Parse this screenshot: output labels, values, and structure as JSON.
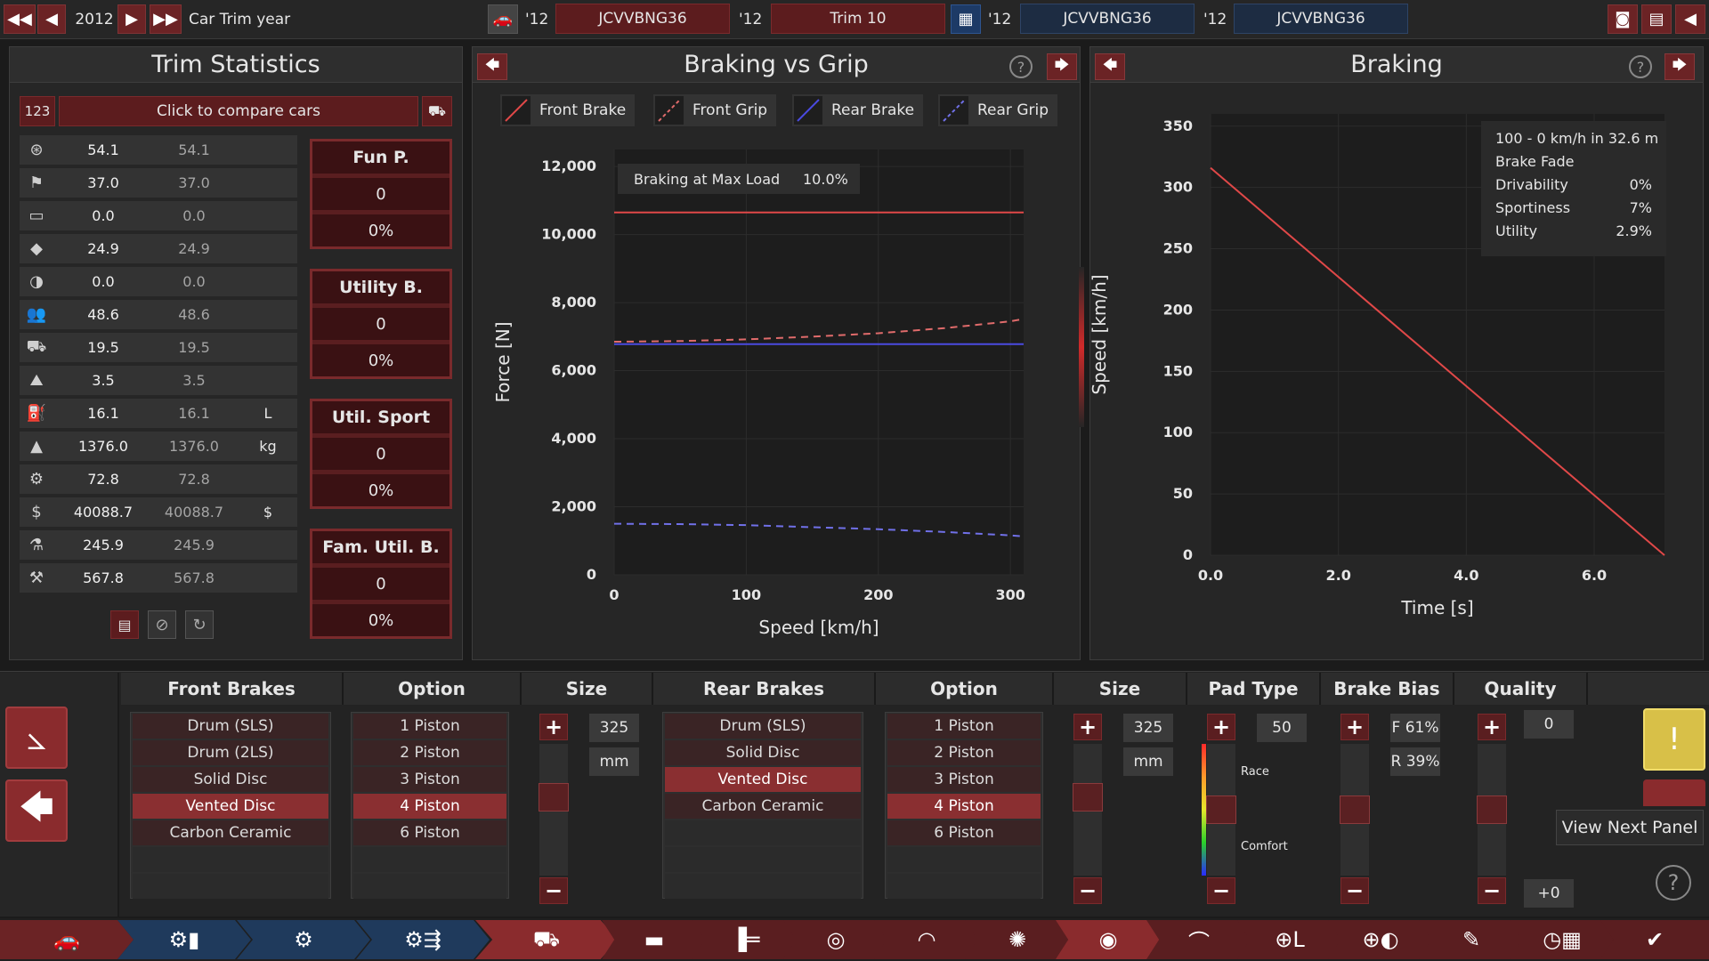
{
  "topbar": {
    "year": "2012",
    "year_label": "Car Trim year",
    "tabs": [
      {
        "year": "'12",
        "name": "JCVVBNG36"
      },
      {
        "year": "'12",
        "name": "Trim 10"
      },
      {
        "year": "'12",
        "name": "JCVVBNG36"
      },
      {
        "year": "'12",
        "name": "JCVVBNG36"
      }
    ]
  },
  "trim_stats": {
    "title": "Trim Statistics",
    "compare_badge": "123",
    "compare_label": "Click to compare cars",
    "rows": [
      {
        "icon": "steering-wheel-icon",
        "v1": "54.1",
        "v2": "54.1",
        "unit": ""
      },
      {
        "icon": "checkered-flag-icon",
        "v1": "37.0",
        "v2": "37.0",
        "unit": ""
      },
      {
        "icon": "seat-icon",
        "v1": "0.0",
        "v2": "0.0",
        "unit": ""
      },
      {
        "icon": "gem-icon",
        "v1": "24.9",
        "v2": "24.9",
        "unit": ""
      },
      {
        "icon": "safety-icon",
        "v1": "0.0",
        "v2": "0.0",
        "unit": ""
      },
      {
        "icon": "passengers-icon",
        "v1": "48.6",
        "v2": "48.6",
        "unit": ""
      },
      {
        "icon": "cargo-icon",
        "v1": "19.5",
        "v2": "19.5",
        "unit": ""
      },
      {
        "icon": "offroad-icon",
        "v1": "3.5",
        "v2": "3.5",
        "unit": ""
      },
      {
        "icon": "fuel-icon",
        "v1": "16.1",
        "v2": "16.1",
        "unit": "L"
      },
      {
        "icon": "weight-icon",
        "v1": "1376.0",
        "v2": "1376.0",
        "unit": "kg"
      },
      {
        "icon": "service-icon",
        "v1": "72.8",
        "v2": "72.8",
        "unit": ""
      },
      {
        "icon": "cost-icon",
        "v1": "40088.7",
        "v2": "40088.7",
        "unit": "$"
      },
      {
        "icon": "engineering-icon",
        "v1": "245.9",
        "v2": "245.9",
        "unit": ""
      },
      {
        "icon": "tools-icon",
        "v1": "567.8",
        "v2": "567.8",
        "unit": ""
      }
    ],
    "scores": [
      {
        "label": "Fun P.",
        "value": "0",
        "pct": "0%"
      },
      {
        "label": "Utility B.",
        "value": "0",
        "pct": "0%"
      },
      {
        "label": "Util. Sport",
        "value": "0",
        "pct": "0%"
      },
      {
        "label": "Fam. Util. B.",
        "value": "0",
        "pct": "0%"
      }
    ]
  },
  "grip_panel": {
    "title": "Braking vs Grip",
    "legend": [
      "Front Brake",
      "Front Grip",
      "Rear Brake",
      "Rear Grip"
    ],
    "annotation_label": "Braking at Max Load",
    "annotation_value": "10.0%",
    "xlabel": "Speed [km/h]",
    "ylabel": "Force [N]",
    "yticks": [
      "12,000",
      "10,000",
      "8,000",
      "6,000",
      "4,000",
      "2,000",
      "0"
    ],
    "xticks": [
      "0",
      "100",
      "200",
      "300"
    ]
  },
  "braking_panel": {
    "title": "Braking",
    "xlabel": "Time [s]",
    "ylabel": "Speed [km/h]",
    "yticks": [
      "350",
      "300",
      "250",
      "200",
      "150",
      "100",
      "50",
      "0"
    ],
    "xticks": [
      "0.0",
      "2.0",
      "4.0",
      "6.0"
    ],
    "info_title": "100 - 0 km/h in 32.6 m",
    "info_rows": [
      {
        "label": "Brake Fade",
        "value": ""
      },
      {
        "label": "Drivability",
        "value": "0%"
      },
      {
        "label": "Sportiness",
        "value": "7%"
      },
      {
        "label": "Utility",
        "value": "2.9%"
      }
    ]
  },
  "chart_data": [
    {
      "type": "line",
      "title": "Braking vs Grip",
      "xlabel": "Speed [km/h]",
      "ylabel": "Force [N]",
      "xlim": [
        0,
        310
      ],
      "ylim": [
        0,
        12500
      ],
      "x": [
        0,
        50,
        100,
        150,
        200,
        250,
        300,
        310
      ],
      "series": [
        {
          "name": "Front Brake",
          "color": "#e04848",
          "style": "solid",
          "values": [
            10650,
            10650,
            10650,
            10650,
            10650,
            10650,
            10650,
            10650
          ]
        },
        {
          "name": "Front Grip",
          "color": "#e06b6b",
          "style": "dashed",
          "values": [
            6850,
            6870,
            6920,
            7000,
            7100,
            7250,
            7450,
            7520
          ]
        },
        {
          "name": "Rear Brake",
          "color": "#4a4ae0",
          "style": "solid",
          "values": [
            6780,
            6780,
            6780,
            6780,
            6780,
            6780,
            6780,
            6780
          ]
        },
        {
          "name": "Rear Grip",
          "color": "#7070e8",
          "style": "dashed",
          "values": [
            1500,
            1490,
            1460,
            1400,
            1340,
            1260,
            1160,
            1130
          ]
        }
      ]
    },
    {
      "type": "line",
      "title": "Braking",
      "xlabel": "Time [s]",
      "ylabel": "Speed [km/h]",
      "xlim": [
        0,
        7.1
      ],
      "ylim": [
        0,
        360
      ],
      "x": [
        0.0,
        7.1
      ],
      "series": [
        {
          "name": "",
          "color": "#e04848",
          "style": "solid",
          "values": [
            316,
            0
          ]
        }
      ]
    }
  ],
  "bottom": {
    "headers": [
      "Front Brakes",
      "Option",
      "Size",
      "Rear Brakes",
      "Option",
      "Size",
      "Pad Type",
      "Brake Bias",
      "Quality"
    ],
    "front_brakes": [
      {
        "label": "Drum (SLS)",
        "sel": false
      },
      {
        "label": "Drum (2LS)",
        "sel": false
      },
      {
        "label": "Solid Disc",
        "sel": false
      },
      {
        "label": "Vented Disc",
        "sel": true
      },
      {
        "label": "Carbon Ceramic",
        "sel": false
      }
    ],
    "front_options": [
      {
        "label": "1 Piston",
        "sel": false
      },
      {
        "label": "2 Piston",
        "sel": false
      },
      {
        "label": "3 Piston",
        "sel": false
      },
      {
        "label": "4 Piston",
        "sel": true
      },
      {
        "label": "6 Piston",
        "sel": false
      }
    ],
    "rear_brakes": [
      {
        "label": "Drum (SLS)",
        "sel": false
      },
      {
        "label": "Solid Disc",
        "sel": false
      },
      {
        "label": "Vented Disc",
        "sel": true
      },
      {
        "label": "Carbon Ceramic",
        "sel": false
      }
    ],
    "rear_options": [
      {
        "label": "1 Piston",
        "sel": false
      },
      {
        "label": "2 Piston",
        "sel": false
      },
      {
        "label": "3 Piston",
        "sel": false
      },
      {
        "label": "4 Piston",
        "sel": true
      },
      {
        "label": "6 Piston",
        "sel": false
      }
    ],
    "front_size": "325",
    "front_size_unit": "mm",
    "rear_size": "325",
    "rear_size_unit": "mm",
    "pad_type_value": "50",
    "pad_race_label": "Race",
    "pad_comfort_label": "Comfort",
    "bias_front": "F 61%",
    "bias_rear": "R 39%",
    "quality_value": "0",
    "quality_delta": "+0",
    "tooltip": "View Next Panel"
  },
  "colors": {
    "accent": "#8a2f31",
    "front": "#e04848",
    "rear": "#4a4ae0",
    "warning": "#e6c84a"
  }
}
